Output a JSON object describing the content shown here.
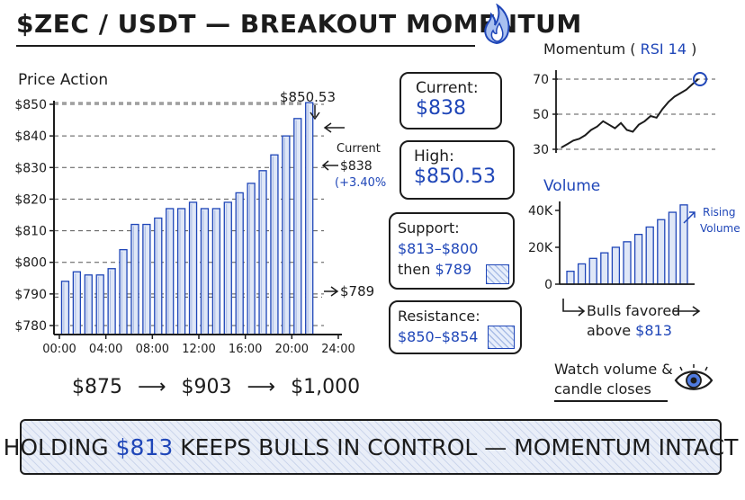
{
  "title": "$ZEC / USDT — BREAKOUT MOMENTUM",
  "price_action_label": "Price Action",
  "price_chart": {
    "peak_label": "$850.53",
    "current_annotation": {
      "label": "Current",
      "price": "$838",
      "change": "(+3.40%)"
    },
    "support_annotation": "$789"
  },
  "targets": {
    "t1": "$875",
    "t2": "$903",
    "t3": "$1,000",
    "arrow": "⟶"
  },
  "cards": {
    "current": {
      "label": "Current:",
      "value": "$838"
    },
    "high": {
      "label": "High:",
      "value": "$850.53"
    },
    "support": {
      "label": "Support:",
      "range": "$813–$800",
      "then_label": "then",
      "then_value": "$789"
    },
    "resistance": {
      "label": "Resistance:",
      "range": "$850–$854"
    }
  },
  "momentum": {
    "title_prefix": "Momentum (",
    "title_value": "RSI 14",
    "title_suffix": ")"
  },
  "volume": {
    "title": "Volume",
    "annotation_line1": "Rising",
    "annotation_line2": "Volume",
    "bulls_prefix": "Bulls favored",
    "bulls_above": "above",
    "bulls_value": "$813"
  },
  "watch_note": {
    "line1": "Watch volume &",
    "line2": "candle closes"
  },
  "banner": {
    "pre": "HOLDING",
    "value": "$813",
    "post": "KEEPS BULLS IN CONTROL — MOMENTUM INTACT"
  },
  "colors": {
    "accent": "#1f46b8",
    "bar_fill": "#dfe7f7",
    "ink": "#1c1c1c"
  },
  "icons": {
    "title_icon": "flame-icon",
    "watch_icon": "eye-icon"
  },
  "chart_data": [
    {
      "type": "bar",
      "title": "Price Action",
      "x_ticks": [
        "00:00",
        "04:00",
        "08:00",
        "12:00",
        "16:00",
        "20:00",
        "24:00"
      ],
      "y_ticks": [
        "$780",
        "$790",
        "$800",
        "$810",
        "$820",
        "$830",
        "$840",
        "$850"
      ],
      "ylim": [
        780,
        850
      ],
      "xlim": [
        0,
        24
      ],
      "x": [
        0.5,
        1.5,
        2.5,
        3.5,
        4.5,
        5.5,
        6.5,
        7.5,
        8.5,
        9.5,
        10.5,
        11.5,
        12.5,
        13.5,
        14.5,
        15.5,
        16.5,
        17.5,
        18.5,
        19.5,
        20.5,
        21.5
      ],
      "values": [
        794,
        797,
        796,
        796,
        798,
        804,
        812,
        812,
        814,
        817,
        817,
        819,
        817,
        817,
        819,
        822,
        825,
        829,
        834,
        840,
        845.5,
        850.53
      ],
      "reference_lines": [
        850.53,
        838,
        789
      ],
      "grid": "horizontal dashed"
    },
    {
      "type": "line",
      "title": "Momentum ( RSI 14 )",
      "y_ticks": [
        "30",
        "50",
        "70"
      ],
      "ylim": [
        30,
        70
      ],
      "x": [
        0,
        1,
        2,
        3,
        4,
        5,
        6,
        7,
        8,
        9,
        10,
        11,
        12,
        13,
        14,
        15,
        16,
        17,
        18,
        19,
        20,
        21,
        22,
        23
      ],
      "values": [
        31,
        33,
        35,
        36,
        38,
        41,
        43,
        46,
        44,
        42,
        45,
        41,
        40,
        44,
        46,
        49,
        48,
        53,
        57,
        60,
        62,
        64,
        67,
        70
      ],
      "grid": "horizontal dashed"
    },
    {
      "type": "bar",
      "title": "Volume",
      "y_ticks": [
        "0",
        "20K",
        "40K"
      ],
      "ylim": [
        0,
        40000
      ],
      "values": [
        7000,
        11000,
        14000,
        17000,
        20000,
        23000,
        27000,
        31000,
        35000,
        39000,
        43000
      ]
    }
  ]
}
